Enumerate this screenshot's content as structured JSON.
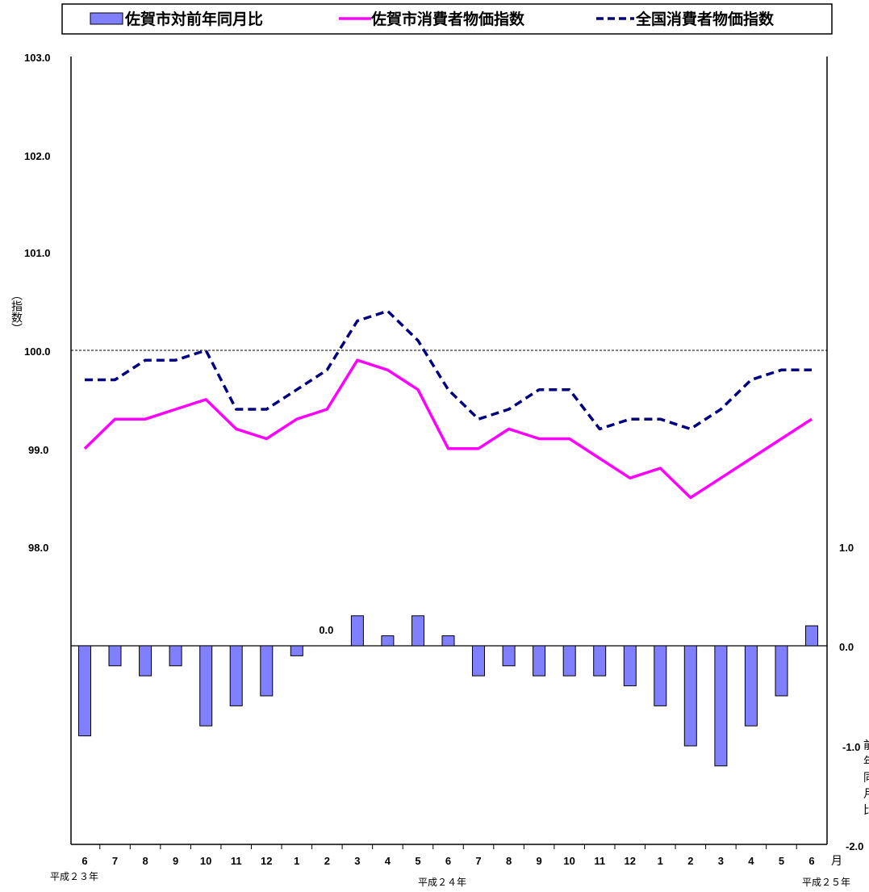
{
  "chart_data": {
    "type": "bar+line",
    "legend": [
      {
        "label": "佐賀市対前年同月比",
        "kind": "bar",
        "color": "#8080ff"
      },
      {
        "label": "佐賀市消費者物価指数",
        "kind": "line",
        "color": "#ff00ff"
      },
      {
        "label": "全国消費者物価指数",
        "kind": "dashed-line",
        "color": "#000080"
      }
    ],
    "categories": [
      "6",
      "7",
      "8",
      "9",
      "10",
      "11",
      "12",
      "1",
      "2",
      "3",
      "4",
      "5",
      "6",
      "7",
      "8",
      "9",
      "10",
      "11",
      "12",
      "1",
      "2",
      "3",
      "4",
      "5",
      "6"
    ],
    "era_labels": {
      "start": "平成２３年",
      "middle": "平成２４年",
      "end": "平成２５年"
    },
    "month_unit": "月",
    "left_axis": {
      "label": "（指数）",
      "ylim": [
        97.0,
        103.0
      ],
      "ticks": [
        "98.0",
        "99.0",
        "100.0",
        "101.0",
        "102.0",
        "103.0"
      ]
    },
    "right_axis": {
      "ylim": [
        -2.0,
        4.0
      ],
      "ticks": [
        "-2.0",
        "-1.0",
        "0.0",
        "1.0"
      ],
      "label_fragments": [
        "前",
        "年",
        "同",
        "月",
        "比"
      ]
    },
    "reference_line": 100.0,
    "series": [
      {
        "name": "佐賀市対前年同月比",
        "axis": "right",
        "values": [
          -0.9,
          -0.2,
          -0.3,
          -0.2,
          -0.8,
          -0.6,
          -0.5,
          -0.1,
          0.0,
          0.3,
          0.1,
          0.3,
          0.1,
          -0.3,
          -0.2,
          -0.3,
          -0.3,
          -0.3,
          -0.4,
          -0.6,
          -1.0,
          -1.2,
          -0.8,
          -0.5,
          0.2
        ]
      },
      {
        "name": "佐賀市消費者物価指数",
        "axis": "left",
        "values": [
          99.0,
          99.3,
          99.3,
          99.4,
          99.5,
          99.2,
          99.1,
          99.3,
          99.4,
          99.9,
          99.8,
          99.6,
          99.0,
          99.0,
          99.2,
          99.1,
          99.1,
          98.9,
          98.7,
          98.8,
          98.5,
          98.7,
          98.9,
          99.1,
          99.3
        ]
      },
      {
        "name": "全国消費者物価指数",
        "axis": "left",
        "values": [
          99.7,
          99.7,
          99.9,
          99.9,
          100.0,
          99.4,
          99.4,
          99.6,
          99.8,
          100.3,
          100.4,
          100.1,
          99.6,
          99.3,
          99.4,
          99.6,
          99.6,
          99.2,
          99.3,
          99.3,
          99.2,
          99.4,
          99.7,
          99.8,
          99.8
        ]
      }
    ],
    "annotations": [
      {
        "text": "0.0",
        "category_index": 8
      }
    ]
  }
}
